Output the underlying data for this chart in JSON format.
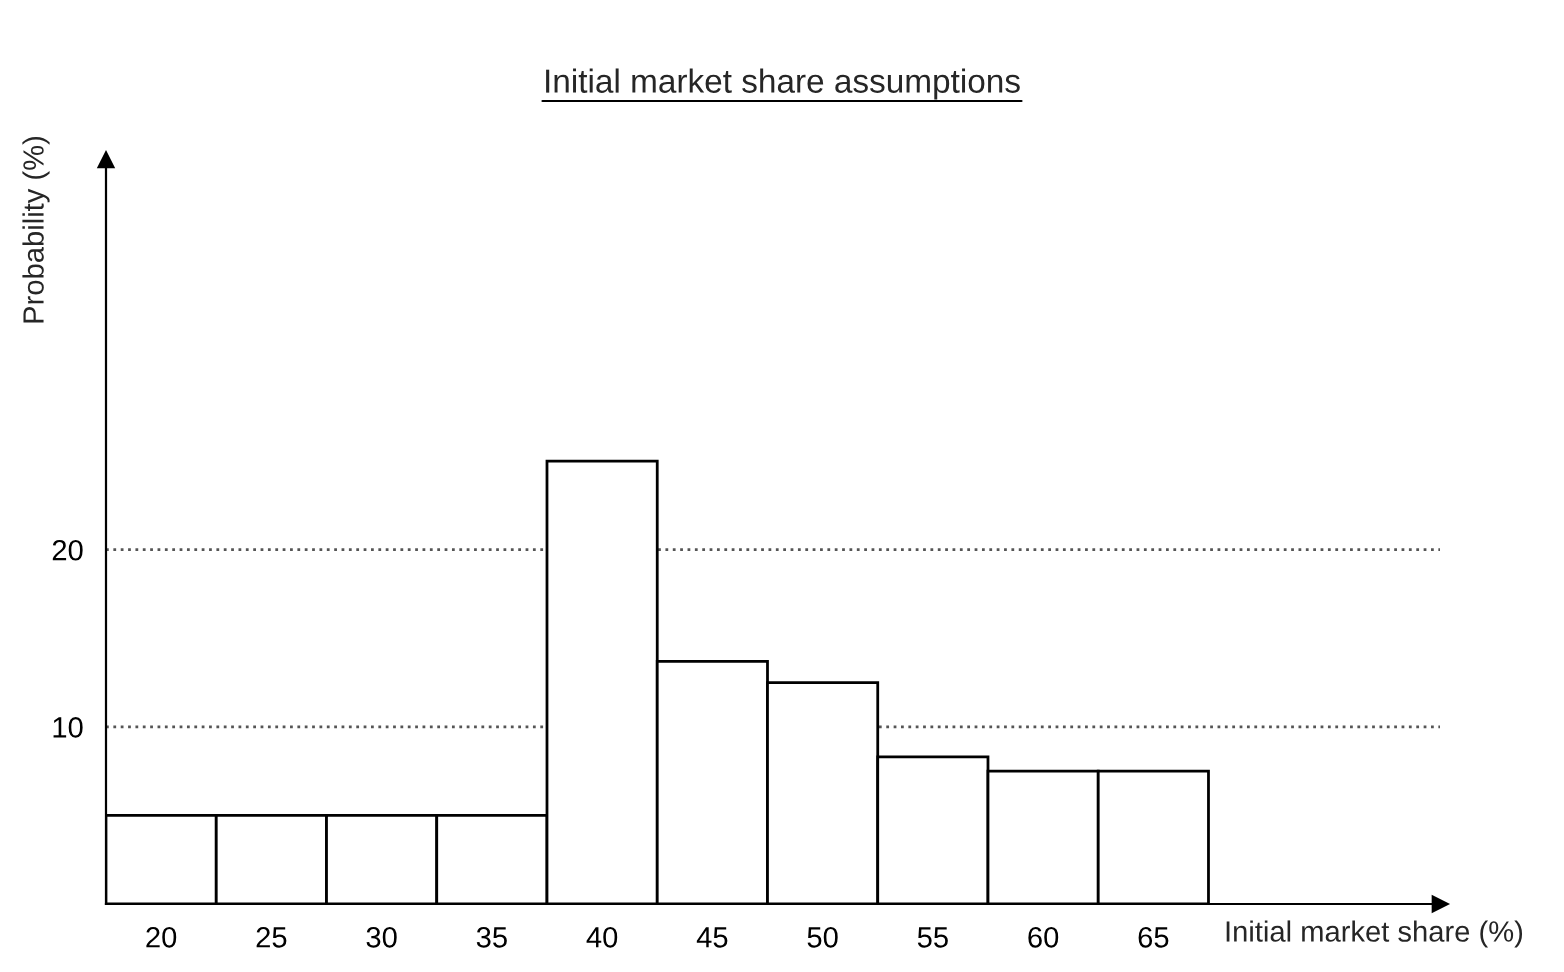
{
  "chart_data": {
    "type": "bar",
    "title": "Initial market share assumptions",
    "xlabel": "Initial market share (%)",
    "ylabel": "Probability (%)",
    "categories": [
      "20",
      "25",
      "30",
      "35",
      "40",
      "45",
      "50",
      "55",
      "60",
      "65"
    ],
    "values": [
      5,
      5,
      5,
      5,
      25,
      13.7,
      12.5,
      8.3,
      7.5,
      7.5
    ],
    "color": "#ffffff",
    "ylim": [
      0,
      42
    ],
    "yticks": [
      10,
      20
    ],
    "grid": "y",
    "line_style": "dotted"
  }
}
